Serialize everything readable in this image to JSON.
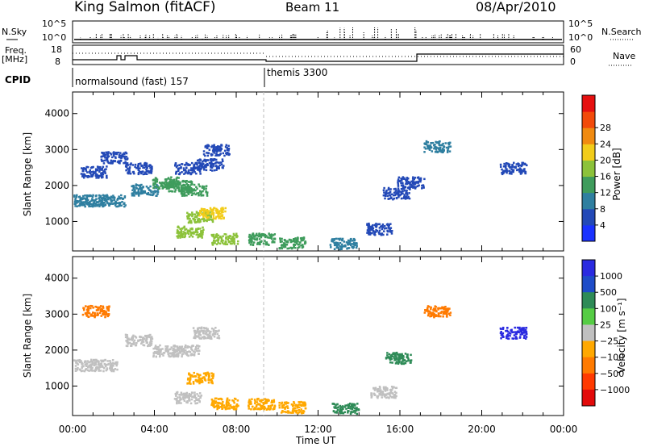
{
  "header": {
    "station": "King Salmon (fitACF)",
    "beam": "Beam 11",
    "date": "08/Apr/2010"
  },
  "rows": {
    "nsky_label": "N.Sky",
    "nsky_ticks": [
      "10^5",
      "10^0"
    ],
    "nsearch_label": "N.Search",
    "nsearch_ticks": [
      "10^5",
      "10^0"
    ],
    "freq_label_1": "Freq.",
    "freq_label_2": "[MHz]",
    "freq_ticks": [
      "18",
      "8"
    ],
    "nave_label": "Nave",
    "nave_ticks": [
      "60",
      "0"
    ],
    "cpid_label": "CPID",
    "cpid_modes": [
      "normalsound (fast) 157",
      "themis 3300"
    ]
  },
  "chart_data": [
    {
      "type": "heatmap",
      "title": "",
      "xlabel": "Time UT",
      "ylabel": "Slant Range [km]",
      "xlim": [
        0,
        24
      ],
      "ylim": [
        180,
        4600
      ],
      "x_ticks": [
        "00:00",
        "04:00",
        "08:00",
        "12:00",
        "16:00",
        "20:00",
        "00:00"
      ],
      "y_ticks": [
        1000,
        2000,
        3000,
        4000
      ],
      "colorbar": {
        "label": "Power [dB]",
        "ticks": [
          "4",
          "8",
          "12",
          "16",
          "20",
          "24",
          "28"
        ],
        "colors": [
          "#1a32ff",
          "#2349b7",
          "#2f7fa0",
          "#3f9c5c",
          "#8cc23a",
          "#f2cc1a",
          "#f08a10",
          "#f24a0a",
          "#e61010"
        ]
      },
      "series": [
        {
          "values": [
            [
              0.1,
              1600,
              10
            ],
            [
              1.0,
              1600,
              10
            ],
            [
              1.9,
              1600,
              10
            ],
            [
              1.0,
              2400,
              4
            ],
            [
              2.0,
              2800,
              5
            ],
            [
              3.2,
              2500,
              4
            ],
            [
              3.5,
              1900,
              8
            ],
            [
              4.5,
              2100,
              14
            ],
            [
              5.2,
              2000,
              14
            ],
            [
              5.9,
              1900,
              12
            ],
            [
              5.6,
              2500,
              6
            ],
            [
              6.7,
              2600,
              7
            ],
            [
              7.0,
              3000,
              4
            ],
            [
              6.2,
              1150,
              16
            ],
            [
              6.8,
              1250,
              22
            ],
            [
              5.7,
              730,
              18
            ],
            [
              7.4,
              530,
              18
            ],
            [
              9.2,
              530,
              14
            ],
            [
              10.7,
              430,
              12
            ],
            [
              13.2,
              390,
              9
            ],
            [
              15.0,
              810,
              6
            ],
            [
              15.8,
              1800,
              7
            ],
            [
              16.5,
              2100,
              6
            ],
            [
              17.8,
              3100,
              8
            ],
            [
              21.5,
              2500,
              6
            ]
          ]
        }
      ]
    },
    {
      "type": "heatmap",
      "title": "",
      "xlabel": "Time UT",
      "ylabel": "Slant Range [km]",
      "xlim": [
        0,
        24
      ],
      "ylim": [
        180,
        4600
      ],
      "x_ticks": [
        "00:00",
        "04:00",
        "08:00",
        "12:00",
        "16:00",
        "20:00",
        "00:00"
      ],
      "y_ticks": [
        1000,
        2000,
        3000,
        4000
      ],
      "colorbar": {
        "label": "Velocity [m s⁻¹]",
        "ticks": [
          "1000",
          "500",
          "100",
          "25",
          "−25",
          "−100",
          "−500",
          "−1000"
        ],
        "colors": [
          "#2a2ae0",
          "#1e4cc8",
          "#2e8b57",
          "#55cc44",
          "#c0c0c0",
          "#ffa800",
          "#ff7a00",
          "#ff3a00",
          "#e20a0a"
        ]
      },
      "series": [
        {
          "values": [
            [
              0.5,
              1600,
              0
            ],
            [
              1.5,
              1600,
              0
            ],
            [
              1.1,
              3100,
              -500
            ],
            [
              3.2,
              2300,
              0
            ],
            [
              4.5,
              2000,
              0
            ],
            [
              5.5,
              2000,
              0
            ],
            [
              6.5,
              2500,
              0
            ],
            [
              6.2,
              1250,
              -100
            ],
            [
              5.6,
              700,
              0
            ],
            [
              7.4,
              530,
              -100
            ],
            [
              9.2,
              530,
              -100
            ],
            [
              10.7,
              430,
              -100
            ],
            [
              13.3,
              380,
              100
            ],
            [
              15.2,
              850,
              0
            ],
            [
              15.9,
              1800,
              100
            ],
            [
              17.8,
              3100,
              -500
            ],
            [
              21.5,
              2500,
              1000
            ]
          ]
        }
      ]
    }
  ]
}
